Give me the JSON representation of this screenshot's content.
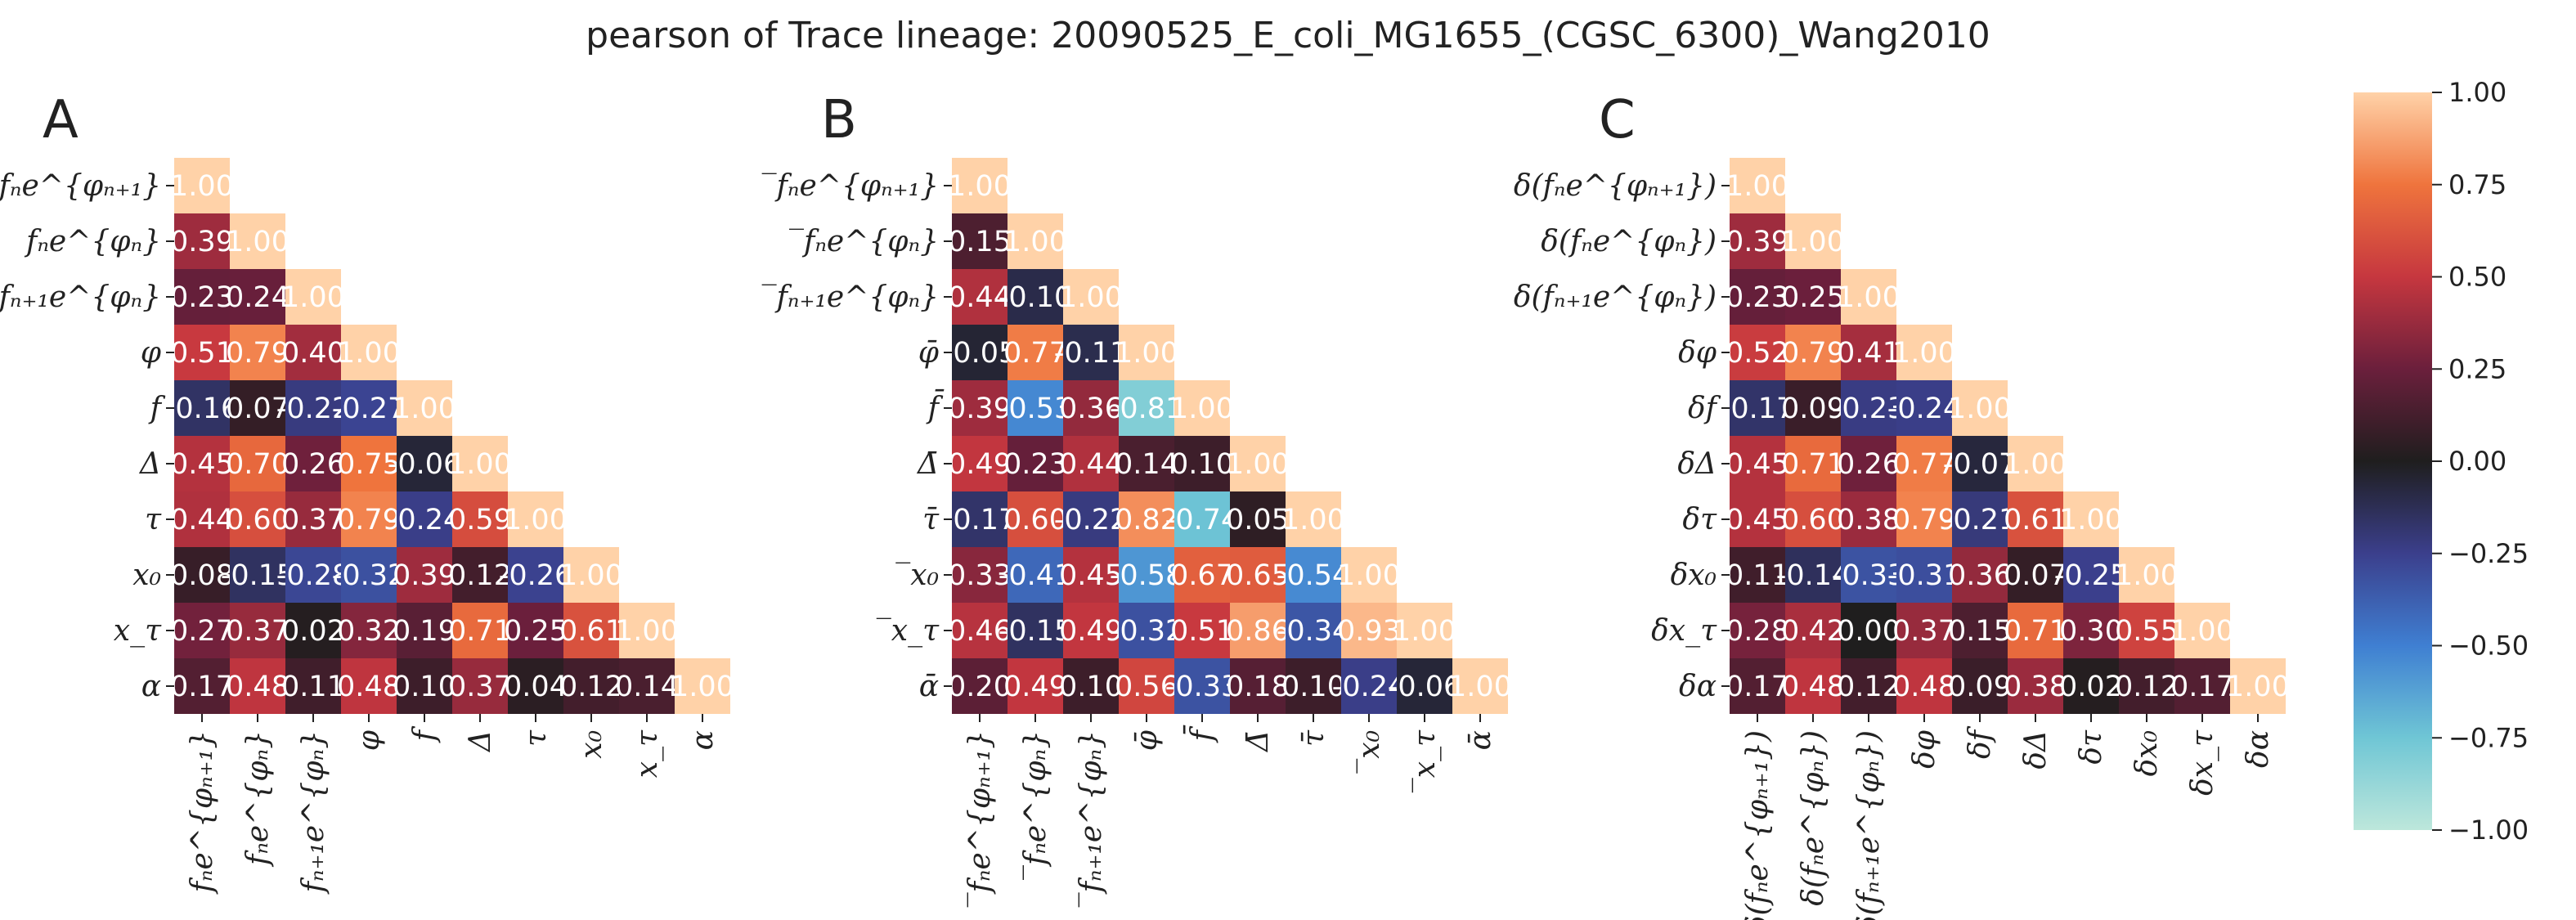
{
  "title": "pearson of Trace lineage: 20090525_E_coli_MG1655_(CGSC_6300)_Wang2010",
  "colorscale": {
    "name": "icefire",
    "min": -1.0,
    "max": 1.0,
    "stops": [
      [
        -1.0,
        "#bde7db"
      ],
      [
        -0.75,
        "#6fc6d5"
      ],
      [
        -0.5,
        "#3f7fd2"
      ],
      [
        -0.25,
        "#3b3f8c"
      ],
      [
        0.0,
        "#1f1e1e"
      ],
      [
        0.25,
        "#6b1f3c"
      ],
      [
        0.5,
        "#c6373f"
      ],
      [
        0.75,
        "#ef743d"
      ],
      [
        1.0,
        "#ffd2a8"
      ]
    ],
    "ticks": [
      "1.00",
      "0.75",
      "0.50",
      "0.25",
      "0.00",
      "−0.25",
      "−0.50",
      "−0.75",
      "−1.00"
    ]
  },
  "chart_data": [
    {
      "type": "heatmap",
      "panel": "A",
      "labels": [
        "fₙe^{φₙ₊₁}",
        "fₙe^{φₙ}",
        "fₙ₊₁e^{φₙ}",
        "φ",
        "f",
        "Δ",
        "τ",
        "x₀",
        "x_τ",
        "α"
      ],
      "values": [
        [
          1.0
        ],
        [
          0.39,
          1.0
        ],
        [
          0.23,
          0.24,
          1.0
        ],
        [
          0.51,
          0.79,
          0.4,
          1.0
        ],
        [
          -0.16,
          0.07,
          -0.22,
          -0.27,
          1.0
        ],
        [
          0.45,
          0.7,
          0.26,
          0.75,
          -0.06,
          1.0
        ],
        [
          0.44,
          0.6,
          0.37,
          0.79,
          -0.24,
          0.59,
          1.0
        ],
        [
          0.08,
          -0.15,
          -0.28,
          -0.32,
          0.39,
          0.12,
          -0.26,
          1.0
        ],
        [
          0.27,
          0.37,
          0.02,
          0.32,
          0.19,
          0.71,
          0.25,
          0.61,
          1.0
        ],
        [
          0.17,
          0.48,
          0.11,
          0.48,
          0.1,
          0.37,
          0.04,
          0.12,
          0.14,
          1.0
        ]
      ],
      "value_labels": [
        [
          "1.00"
        ],
        [
          "0.39",
          "1.00"
        ],
        [
          "0.23",
          "0.24",
          "1.00"
        ],
        [
          "0.51",
          "0.79",
          "0.40",
          "1.00"
        ],
        [
          "-0.16",
          "0.07",
          "-0.22",
          "-0.27",
          "1.00"
        ],
        [
          "0.45",
          "0.70",
          "0.26",
          "0.75",
          "-0.06",
          "1.00"
        ],
        [
          "0.44",
          "0.60",
          "0.37",
          "0.79",
          "-0.24",
          "0.59",
          "1.00"
        ],
        [
          "0.08",
          "-0.15",
          "-0.28",
          "-0.32",
          "0.39",
          "0.12",
          "-0.26",
          "1.00"
        ],
        [
          "0.27",
          "0.37",
          "0.02",
          "0.32",
          "0.19",
          "0.71",
          "0.25",
          "0.61",
          "1.00"
        ],
        [
          "0.17",
          "0.48",
          "0.11",
          "0.48",
          "0.10",
          "0.37",
          "0.04",
          "0.12",
          "0.14",
          "1.00"
        ]
      ]
    },
    {
      "type": "heatmap",
      "panel": "B",
      "labels": [
        "‾fₙe^{φₙ₊₁}",
        "‾fₙe^{φₙ}",
        "‾fₙ₊₁e^{φₙ}",
        "φ̄",
        "f̄",
        "Δ̄",
        "τ̄",
        "‾x₀",
        "‾x_τ",
        "ᾱ"
      ],
      "values": [
        [
          1.0
        ],
        [
          0.15,
          1.0
        ],
        [
          0.44,
          -0.1,
          1.0
        ],
        [
          -0.05,
          0.77,
          -0.11,
          1.0
        ],
        [
          0.39,
          -0.53,
          0.36,
          -0.81,
          1.0
        ],
        [
          0.49,
          0.23,
          0.44,
          0.14,
          0.1,
          1.0
        ],
        [
          -0.17,
          0.6,
          -0.22,
          0.82,
          -0.74,
          0.05,
          1.0
        ],
        [
          0.33,
          -0.41,
          0.45,
          -0.58,
          0.67,
          0.65,
          -0.54,
          1.0
        ],
        [
          0.46,
          -0.15,
          0.49,
          -0.32,
          0.51,
          0.86,
          -0.34,
          0.93,
          1.0
        ],
        [
          0.2,
          0.49,
          0.1,
          0.56,
          -0.33,
          0.18,
          0.1,
          -0.24,
          -0.06,
          1.0
        ]
      ],
      "value_labels": [
        [
          "1.00"
        ],
        [
          "0.15",
          "1.00"
        ],
        [
          "0.44",
          "-0.10",
          "1.00"
        ],
        [
          "-0.05",
          "0.77",
          "-0.11",
          "1.00"
        ],
        [
          "0.39",
          "-0.53",
          "0.36",
          "-0.81",
          "1.00"
        ],
        [
          "0.49",
          "0.23",
          "0.44",
          "0.14",
          "0.10",
          "1.00"
        ],
        [
          "-0.17",
          "0.60",
          "-0.22",
          "0.82",
          "-0.74",
          "0.05",
          "1.00"
        ],
        [
          "0.33",
          "-0.41",
          "0.45",
          "-0.58",
          "0.67",
          "0.65",
          "-0.54",
          "1.00"
        ],
        [
          "0.46",
          "-0.15",
          "0.49",
          "-0.32",
          "0.51",
          "0.86",
          "-0.34",
          "0.93",
          "1.00"
        ],
        [
          "0.20",
          "0.49",
          "0.10",
          "0.56",
          "-0.33",
          "0.18",
          "0.10",
          "-0.24",
          "-0.06",
          "1.00"
        ]
      ]
    },
    {
      "type": "heatmap",
      "panel": "C",
      "labels": [
        "δ(fₙe^{φₙ₊₁})",
        "δ(fₙe^{φₙ})",
        "δ(fₙ₊₁e^{φₙ})",
        "δφ",
        "δf",
        "δΔ",
        "δτ",
        "δx₀",
        "δx_τ",
        "δα"
      ],
      "values": [
        [
          1.0
        ],
        [
          0.39,
          1.0
        ],
        [
          0.23,
          0.25,
          1.0
        ],
        [
          0.52,
          0.79,
          0.41,
          1.0
        ],
        [
          -0.17,
          0.09,
          -0.23,
          -0.24,
          1.0
        ],
        [
          0.45,
          0.71,
          0.26,
          0.77,
          -0.07,
          1.0
        ],
        [
          0.45,
          0.6,
          0.38,
          0.79,
          -0.21,
          0.61,
          1.0
        ],
        [
          0.11,
          -0.14,
          -0.33,
          -0.31,
          0.36,
          0.07,
          -0.25,
          1.0
        ],
        [
          0.28,
          0.42,
          0.0,
          0.37,
          0.15,
          0.71,
          0.3,
          0.55,
          1.0
        ],
        [
          0.17,
          0.48,
          0.12,
          0.48,
          0.09,
          0.38,
          0.02,
          0.12,
          0.17,
          1.0
        ]
      ],
      "value_labels": [
        [
          "1.00"
        ],
        [
          "0.39",
          "1.00"
        ],
        [
          "0.23",
          "0.25",
          "1.00"
        ],
        [
          "0.52",
          "0.79",
          "0.41",
          "1.00"
        ],
        [
          "-0.17",
          "0.09",
          "-0.23",
          "-0.24",
          "1.00"
        ],
        [
          "0.45",
          "0.71",
          "0.26",
          "0.77",
          "-0.07",
          "1.00"
        ],
        [
          "0.45",
          "0.60",
          "0.38",
          "0.79",
          "-0.21",
          "0.61",
          "1.00"
        ],
        [
          "0.11",
          "-0.14",
          "-0.33",
          "-0.31",
          "0.36",
          "0.07",
          "-0.25",
          "1.00"
        ],
        [
          "0.28",
          "0.42",
          "0.00",
          "0.37",
          "0.15",
          "0.71",
          "0.30",
          "0.55",
          "1.00"
        ],
        [
          "0.17",
          "0.48",
          "0.12",
          "0.48",
          "0.09",
          "0.38",
          "0.02",
          "0.12",
          "0.17",
          "1.00"
        ]
      ]
    }
  ]
}
